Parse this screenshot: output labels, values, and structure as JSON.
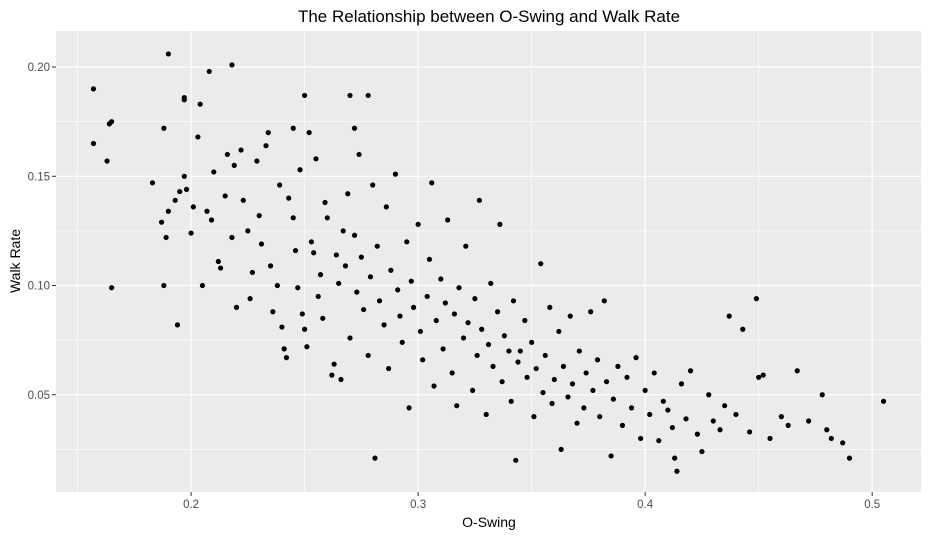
{
  "chart_data": {
    "type": "scatter",
    "title": "The Relationship between O-Swing and Walk Rate",
    "xlabel": "O-Swing",
    "ylabel": "Walk Rate",
    "xlim": [
      0.1405,
      0.5215
    ],
    "ylim": [
      0.0055,
      0.2165
    ],
    "x_ticks": [
      0.2,
      0.3,
      0.4,
      0.5
    ],
    "x_tick_labels": [
      "0.2",
      "0.3",
      "0.4",
      "0.5"
    ],
    "y_ticks": [
      0.05,
      0.1,
      0.15,
      0.2
    ],
    "y_tick_labels": [
      "0.05",
      "0.10",
      "0.15",
      "0.20"
    ],
    "grid": true,
    "colors": {
      "panel": "#ebebeb",
      "grid": "#ffffff",
      "point": "#000000"
    },
    "points": [
      [
        0.157,
        0.19
      ],
      [
        0.157,
        0.165
      ],
      [
        0.163,
        0.157
      ],
      [
        0.164,
        0.174
      ],
      [
        0.165,
        0.175
      ],
      [
        0.165,
        0.099
      ],
      [
        0.183,
        0.147
      ],
      [
        0.187,
        0.129
      ],
      [
        0.188,
        0.1
      ],
      [
        0.19,
        0.206
      ],
      [
        0.194,
        0.082
      ],
      [
        0.188,
        0.172
      ],
      [
        0.197,
        0.185
      ],
      [
        0.197,
        0.186
      ],
      [
        0.204,
        0.183
      ],
      [
        0.208,
        0.198
      ],
      [
        0.218,
        0.201
      ],
      [
        0.25,
        0.187
      ],
      [
        0.27,
        0.187
      ],
      [
        0.278,
        0.187
      ],
      [
        0.272,
        0.172
      ],
      [
        0.245,
        0.172
      ],
      [
        0.189,
        0.122
      ],
      [
        0.19,
        0.134
      ],
      [
        0.193,
        0.139
      ],
      [
        0.195,
        0.143
      ],
      [
        0.197,
        0.15
      ],
      [
        0.198,
        0.144
      ],
      [
        0.2,
        0.124
      ],
      [
        0.201,
        0.136
      ],
      [
        0.203,
        0.168
      ],
      [
        0.205,
        0.1
      ],
      [
        0.207,
        0.134
      ],
      [
        0.209,
        0.13
      ],
      [
        0.21,
        0.152
      ],
      [
        0.212,
        0.111
      ],
      [
        0.213,
        0.108
      ],
      [
        0.215,
        0.141
      ],
      [
        0.216,
        0.16
      ],
      [
        0.218,
        0.122
      ],
      [
        0.219,
        0.155
      ],
      [
        0.22,
        0.09
      ],
      [
        0.222,
        0.162
      ],
      [
        0.223,
        0.139
      ],
      [
        0.225,
        0.125
      ],
      [
        0.226,
        0.094
      ],
      [
        0.227,
        0.106
      ],
      [
        0.229,
        0.157
      ],
      [
        0.23,
        0.132
      ],
      [
        0.231,
        0.119
      ],
      [
        0.233,
        0.164
      ],
      [
        0.234,
        0.17
      ],
      [
        0.235,
        0.109
      ],
      [
        0.236,
        0.088
      ],
      [
        0.238,
        0.1
      ],
      [
        0.239,
        0.146
      ],
      [
        0.24,
        0.081
      ],
      [
        0.241,
        0.071
      ],
      [
        0.242,
        0.067
      ],
      [
        0.243,
        0.14
      ],
      [
        0.245,
        0.131
      ],
      [
        0.246,
        0.116
      ],
      [
        0.247,
        0.099
      ],
      [
        0.248,
        0.153
      ],
      [
        0.249,
        0.087
      ],
      [
        0.25,
        0.08
      ],
      [
        0.251,
        0.072
      ],
      [
        0.252,
        0.17
      ],
      [
        0.253,
        0.12
      ],
      [
        0.254,
        0.115
      ],
      [
        0.255,
        0.158
      ],
      [
        0.256,
        0.095
      ],
      [
        0.257,
        0.105
      ],
      [
        0.258,
        0.085
      ],
      [
        0.259,
        0.138
      ],
      [
        0.26,
        0.131
      ],
      [
        0.262,
        0.059
      ],
      [
        0.263,
        0.064
      ],
      [
        0.264,
        0.114
      ],
      [
        0.265,
        0.101
      ],
      [
        0.266,
        0.057
      ],
      [
        0.267,
        0.125
      ],
      [
        0.268,
        0.109
      ],
      [
        0.269,
        0.142
      ],
      [
        0.27,
        0.076
      ],
      [
        0.272,
        0.123
      ],
      [
        0.273,
        0.097
      ],
      [
        0.274,
        0.16
      ],
      [
        0.275,
        0.113
      ],
      [
        0.276,
        0.089
      ],
      [
        0.278,
        0.068
      ],
      [
        0.279,
        0.104
      ],
      [
        0.28,
        0.146
      ],
      [
        0.281,
        0.021
      ],
      [
        0.282,
        0.118
      ],
      [
        0.283,
        0.093
      ],
      [
        0.285,
        0.082
      ],
      [
        0.286,
        0.136
      ],
      [
        0.287,
        0.062
      ],
      [
        0.288,
        0.107
      ],
      [
        0.29,
        0.151
      ],
      [
        0.291,
        0.098
      ],
      [
        0.292,
        0.086
      ],
      [
        0.293,
        0.074
      ],
      [
        0.295,
        0.12
      ],
      [
        0.296,
        0.044
      ],
      [
        0.297,
        0.102
      ],
      [
        0.298,
        0.09
      ],
      [
        0.3,
        0.128
      ],
      [
        0.301,
        0.079
      ],
      [
        0.302,
        0.066
      ],
      [
        0.304,
        0.095
      ],
      [
        0.305,
        0.112
      ],
      [
        0.306,
        0.147
      ],
      [
        0.307,
        0.054
      ],
      [
        0.308,
        0.084
      ],
      [
        0.31,
        0.103
      ],
      [
        0.311,
        0.071
      ],
      [
        0.312,
        0.092
      ],
      [
        0.313,
        0.13
      ],
      [
        0.315,
        0.06
      ],
      [
        0.316,
        0.087
      ],
      [
        0.317,
        0.045
      ],
      [
        0.318,
        0.099
      ],
      [
        0.32,
        0.076
      ],
      [
        0.321,
        0.118
      ],
      [
        0.322,
        0.083
      ],
      [
        0.324,
        0.052
      ],
      [
        0.325,
        0.094
      ],
      [
        0.326,
        0.068
      ],
      [
        0.327,
        0.139
      ],
      [
        0.328,
        0.08
      ],
      [
        0.33,
        0.041
      ],
      [
        0.331,
        0.073
      ],
      [
        0.332,
        0.101
      ],
      [
        0.333,
        0.063
      ],
      [
        0.335,
        0.088
      ],
      [
        0.336,
        0.128
      ],
      [
        0.337,
        0.056
      ],
      [
        0.338,
        0.077
      ],
      [
        0.34,
        0.07
      ],
      [
        0.341,
        0.047
      ],
      [
        0.342,
        0.093
      ],
      [
        0.343,
        0.02
      ],
      [
        0.344,
        0.065
      ],
      [
        0.345,
        0.07
      ],
      [
        0.347,
        0.084
      ],
      [
        0.348,
        0.058
      ],
      [
        0.35,
        0.074
      ],
      [
        0.351,
        0.04
      ],
      [
        0.352,
        0.062
      ],
      [
        0.354,
        0.11
      ],
      [
        0.355,
        0.051
      ],
      [
        0.356,
        0.068
      ],
      [
        0.358,
        0.09
      ],
      [
        0.359,
        0.046
      ],
      [
        0.36,
        0.057
      ],
      [
        0.362,
        0.079
      ],
      [
        0.363,
        0.025
      ],
      [
        0.364,
        0.063
      ],
      [
        0.366,
        0.049
      ],
      [
        0.367,
        0.086
      ],
      [
        0.368,
        0.055
      ],
      [
        0.37,
        0.037
      ],
      [
        0.371,
        0.07
      ],
      [
        0.373,
        0.044
      ],
      [
        0.374,
        0.06
      ],
      [
        0.376,
        0.088
      ],
      [
        0.377,
        0.052
      ],
      [
        0.379,
        0.066
      ],
      [
        0.38,
        0.04
      ],
      [
        0.382,
        0.093
      ],
      [
        0.383,
        0.056
      ],
      [
        0.385,
        0.022
      ],
      [
        0.386,
        0.048
      ],
      [
        0.388,
        0.063
      ],
      [
        0.39,
        0.036
      ],
      [
        0.392,
        0.058
      ],
      [
        0.394,
        0.044
      ],
      [
        0.396,
        0.067
      ],
      [
        0.398,
        0.03
      ],
      [
        0.4,
        0.052
      ],
      [
        0.402,
        0.041
      ],
      [
        0.404,
        0.06
      ],
      [
        0.406,
        0.029
      ],
      [
        0.408,
        0.047
      ],
      [
        0.41,
        0.043
      ],
      [
        0.412,
        0.035
      ],
      [
        0.413,
        0.021
      ],
      [
        0.414,
        0.015
      ],
      [
        0.416,
        0.055
      ],
      [
        0.418,
        0.039
      ],
      [
        0.42,
        0.061
      ],
      [
        0.423,
        0.032
      ],
      [
        0.425,
        0.024
      ],
      [
        0.428,
        0.05
      ],
      [
        0.43,
        0.038
      ],
      [
        0.433,
        0.034
      ],
      [
        0.435,
        0.045
      ],
      [
        0.437,
        0.086
      ],
      [
        0.44,
        0.041
      ],
      [
        0.443,
        0.08
      ],
      [
        0.446,
        0.033
      ],
      [
        0.449,
        0.094
      ],
      [
        0.45,
        0.058
      ],
      [
        0.452,
        0.059
      ],
      [
        0.455,
        0.03
      ],
      [
        0.46,
        0.04
      ],
      [
        0.463,
        0.036
      ],
      [
        0.467,
        0.061
      ],
      [
        0.472,
        0.038
      ],
      [
        0.478,
        0.05
      ],
      [
        0.48,
        0.034
      ],
      [
        0.482,
        0.03
      ],
      [
        0.487,
        0.028
      ],
      [
        0.49,
        0.021
      ],
      [
        0.505,
        0.047
      ]
    ]
  }
}
